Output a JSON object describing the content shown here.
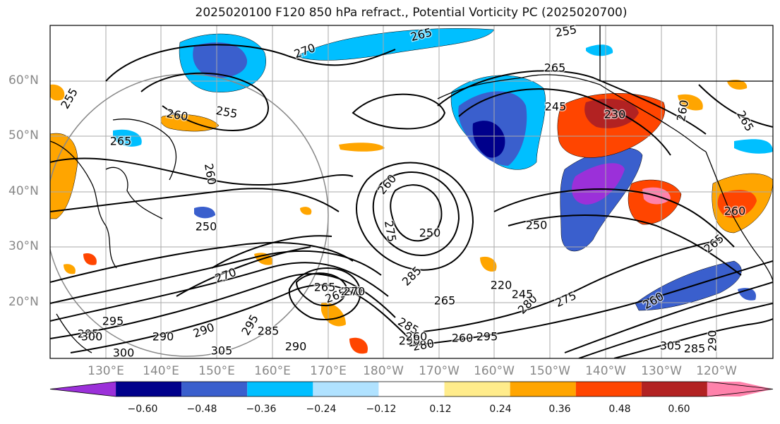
{
  "title": "2025020100 F120 850 hPa refract., Potential Vorticity PC (2025020700)",
  "lat_labels": [
    "60°N",
    "50°N",
    "40°N",
    "30°N",
    "20°N"
  ],
  "lon_labels": [
    "130°E",
    "140°E",
    "150°E",
    "160°E",
    "170°E",
    "180°W",
    "170°W",
    "160°W",
    "150°W",
    "140°W",
    "130°W",
    "120°W"
  ],
  "colorbar": {
    "colors": [
      "#9b30d9",
      "#00008b",
      "#3a5fcd",
      "#00bfff",
      "#b0e2ff",
      "#ffffff",
      "#ffec8b",
      "#ffa500",
      "#ff4500",
      "#b22222",
      "#ff82ab"
    ],
    "ticks": [
      "−0.60",
      "−0.48",
      "−0.36",
      "−0.24",
      "−0.12",
      "0.12",
      "0.24",
      "0.36",
      "0.48",
      "0.60"
    ]
  },
  "contour_labels": [
    "270",
    "265",
    "255",
    "265",
    "245",
    "230",
    "260",
    "265",
    "250",
    "255",
    "260",
    "265",
    "260",
    "255",
    "260",
    "250",
    "275",
    "270",
    "285",
    "265",
    "265",
    "270",
    "280",
    "285",
    "280",
    "275",
    "260",
    "265",
    "260",
    "295",
    "295",
    "290",
    "290",
    "285",
    "290",
    "295",
    "300",
    "305",
    "300",
    "305",
    "285",
    "290",
    "260",
    "270",
    "245",
    "220",
    "250",
    "265",
    "290",
    "260",
    "295"
  ]
}
